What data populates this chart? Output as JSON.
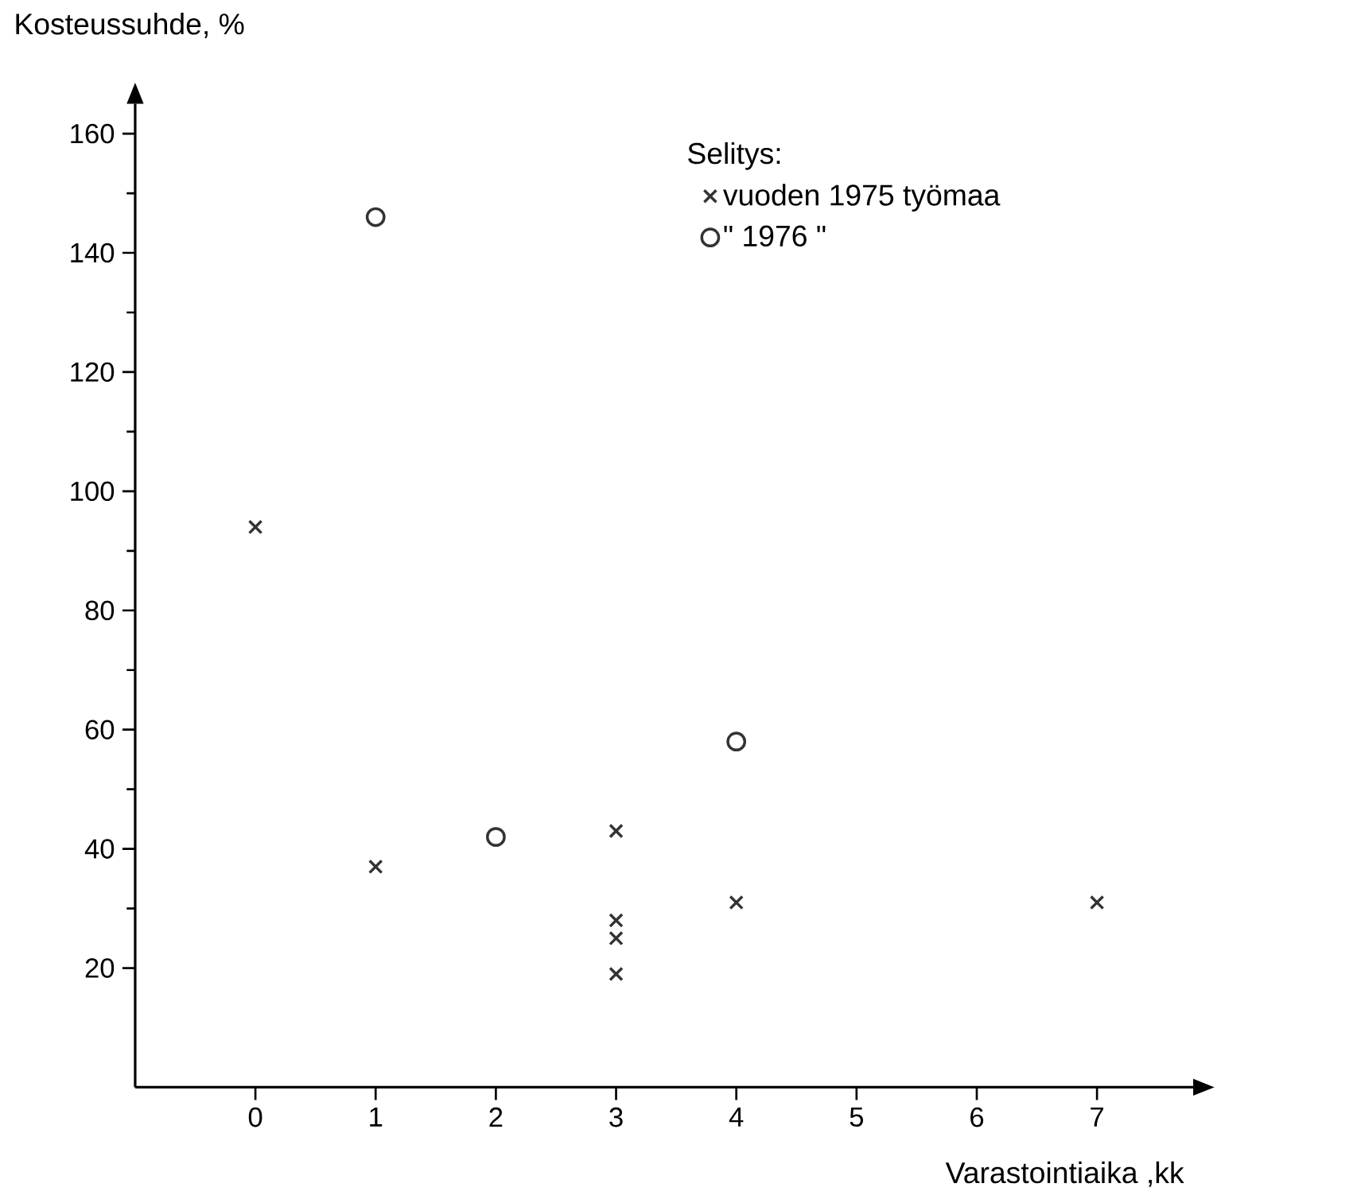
{
  "chart_data": {
    "type": "scatter",
    "xlabel": "Varastointiaika ,kk",
    "ylabel": "Kosteussuhde, %",
    "legend_title": "Selitys:",
    "xlim": [
      -1,
      7.8
    ],
    "ylim": [
      0,
      165
    ],
    "xticks": [
      0,
      1,
      2,
      3,
      4,
      5,
      6,
      7
    ],
    "yticks": [
      20,
      40,
      60,
      80,
      100,
      120,
      140,
      160
    ],
    "grid": false,
    "legend": "top right",
    "series": [
      {
        "name": "vuoden 1975 työmaa",
        "color": "#333333",
        "marker": "cross",
        "x": [
          0,
          1,
          3,
          3,
          3,
          3,
          4,
          7
        ],
        "values": [
          94,
          37,
          43,
          28,
          25,
          19,
          31,
          31
        ]
      },
      {
        "name": "\"        1976        \"",
        "color": "#333333",
        "marker": "circle",
        "x": [
          1,
          2,
          4
        ],
        "values": [
          146,
          42,
          58
        ]
      }
    ]
  }
}
